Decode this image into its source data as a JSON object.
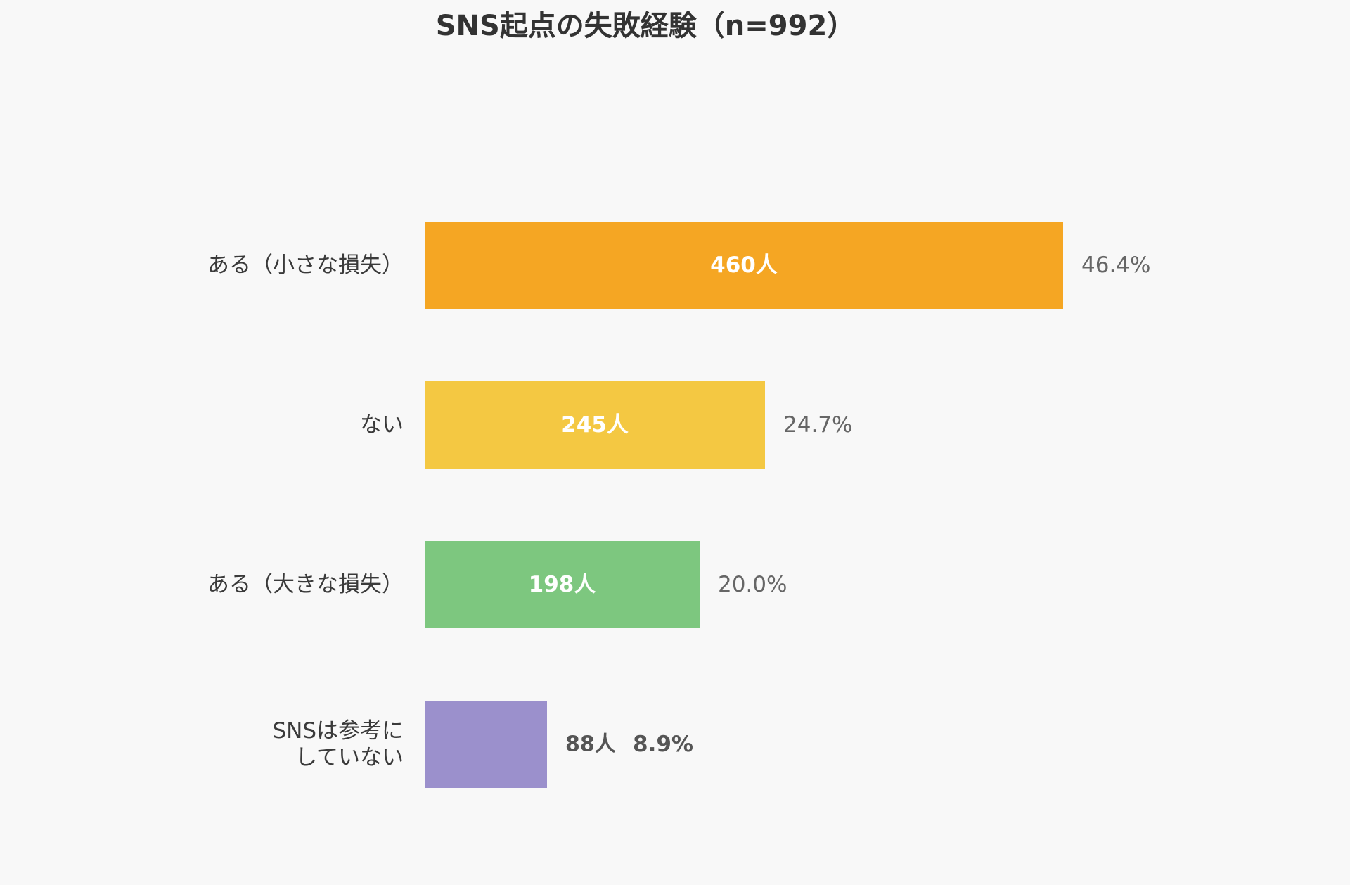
{
  "chart_data": {
    "type": "bar",
    "orientation": "horizontal",
    "title": "SNS起点の失敗経験（n=992）",
    "categories": [
      [
        "ある（小さな損失）"
      ],
      [
        "ない"
      ],
      [
        "ある（大きな損失）"
      ],
      [
        "SNSは参考に",
        "していない"
      ]
    ],
    "values": [
      460,
      245,
      198,
      88
    ],
    "value_labels": [
      "460人",
      "245人",
      "198人",
      "88人"
    ],
    "percentages": [
      46.4,
      24.7,
      20.0,
      8.9
    ],
    "percentage_labels": [
      "46.4%",
      "24.7%",
      "20.0%",
      "8.9%"
    ],
    "colors": [
      "#f5a623",
      "#f4c842",
      "#7dc77f",
      "#9b90cc"
    ],
    "xlim": [
      0,
      460
    ],
    "grid": false,
    "legend": "none"
  }
}
